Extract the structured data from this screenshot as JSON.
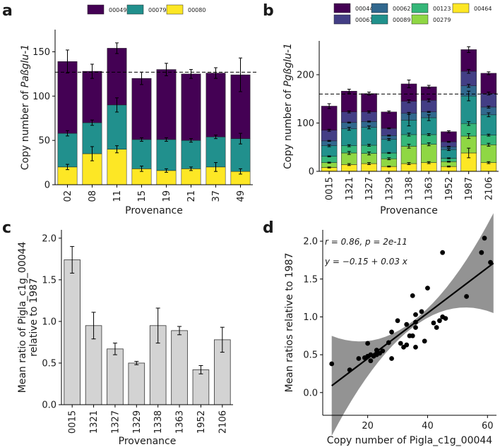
{
  "colors": {
    "00044": "#440154",
    "00049": "#440154",
    "00061": "#433e85",
    "00062": "#31688e",
    "00079": "#21908d",
    "00089": "#21918c",
    "00123": "#35b779",
    "00279": "#8fd744",
    "00080": "#fde725",
    "00464": "#fde725",
    "bar_gray": "#d3d3d3",
    "ribbon": "#808080"
  },
  "panels": {
    "a": {
      "letter": "a"
    },
    "b": {
      "letter": "b"
    },
    "c": {
      "letter": "c"
    },
    "d": {
      "letter": "d"
    }
  },
  "chart_data": [
    {
      "id": "a",
      "type": "bar",
      "stacked": true,
      "xlabel": "Provenance",
      "ylabel_prefix": "Copy number of ",
      "ylabel_italic": "Paßglu-1",
      "categories": [
        "02",
        "08",
        "11",
        "15",
        "19",
        "21",
        "37",
        "49"
      ],
      "ylim": [
        0,
        175
      ],
      "yticks": [
        "0",
        "50",
        "100",
        "150"
      ],
      "reference_line": 127,
      "legend_position": "top",
      "series": [
        {
          "name": "00080",
          "values": [
            20,
            35,
            40,
            18,
            16,
            18,
            20,
            15
          ],
          "errors": [
            3,
            8,
            4,
            3,
            2,
            2,
            5,
            3
          ]
        },
        {
          "name": "00079",
          "values": [
            38,
            35,
            50,
            33,
            35,
            32,
            34,
            37
          ],
          "errors": [
            3,
            3,
            8,
            2,
            2,
            2,
            2,
            6
          ]
        },
        {
          "name": "00049",
          "values": [
            81,
            58,
            64,
            69,
            79,
            75,
            72,
            72
          ],
          "errors": [
            13,
            8,
            6,
            7,
            7,
            5,
            6,
            19
          ]
        }
      ]
    },
    {
      "id": "b",
      "type": "bar",
      "stacked": true,
      "xlabel": "Provenance",
      "ylabel_prefix": "Copy number of ",
      "ylabel_italic": "Pgßglu-1",
      "categories": [
        "0015",
        "1321",
        "1327",
        "1329",
        "1338",
        "1363",
        "1952",
        "1987",
        "2106"
      ],
      "ylim": [
        0,
        270
      ],
      "yticks": [
        "0",
        "100",
        "200"
      ],
      "reference_line": 160,
      "legend_position": "top",
      "series": [
        {
          "name": "00464",
          "values": [
            8,
            14,
            16,
            10,
            16,
            18,
            10,
            38,
            18
          ],
          "errors": [
            1,
            2,
            2,
            1,
            2,
            2,
            1,
            10,
            2
          ]
        },
        {
          "name": "00279",
          "values": [
            10,
            24,
            21,
            16,
            36,
            38,
            10,
            35,
            37
          ],
          "errors": [
            1,
            3,
            3,
            2,
            4,
            3,
            1,
            5,
            3
          ]
        },
        {
          "name": "00123",
          "values": [
            13,
            15,
            17,
            12,
            24,
            20,
            7,
            26,
            20
          ],
          "errors": [
            1,
            2,
            2,
            1,
            3,
            2,
            1,
            4,
            2
          ]
        },
        {
          "name": "00089",
          "values": [
            22,
            35,
            37,
            28,
            30,
            35,
            18,
            57,
            42
          ],
          "errors": [
            2,
            3,
            3,
            2,
            12,
            6,
            2,
            10,
            4
          ]
        },
        {
          "name": "00062",
          "values": [
            10,
            13,
            12,
            8,
            14,
            12,
            6,
            21,
            16
          ],
          "errors": [
            1,
            1,
            1,
            1,
            2,
            1,
            1,
            3,
            2
          ]
        },
        {
          "name": "00061",
          "values": [
            22,
            22,
            20,
            15,
            25,
            24,
            10,
            30,
            28
          ],
          "errors": [
            2,
            2,
            2,
            1,
            3,
            3,
            1,
            4,
            3
          ]
        },
        {
          "name": "00044",
          "values": [
            50,
            43,
            38,
            34,
            36,
            28,
            21,
            45,
            42
          ],
          "errors": [
            5,
            4,
            3,
            2,
            8,
            3,
            2,
            6,
            3
          ]
        }
      ]
    },
    {
      "id": "c",
      "type": "bar",
      "xlabel": "Provenance",
      "ylabel_line1": "Mean ratio of Pigla_c1g_00044",
      "ylabel_line2": "relative to 1987",
      "categories": [
        "0015",
        "1321",
        "1327",
        "1329",
        "1338",
        "1363",
        "1952",
        "2106"
      ],
      "values": [
        1.74,
        0.95,
        0.67,
        0.5,
        0.95,
        0.89,
        0.42,
        0.78
      ],
      "errors": [
        0.16,
        0.16,
        0.07,
        0.02,
        0.21,
        0.05,
        0.05,
        0.15
      ],
      "ylim": [
        0,
        2.1
      ],
      "yticks": [
        "0.0",
        "0.5",
        "1.0",
        "1.5",
        "2.0"
      ]
    },
    {
      "id": "d",
      "type": "scatter",
      "xlabel": "Copy number of Pigla_c1g_00044",
      "ylabel": "Mean ratios relative to 1987",
      "xlim": [
        5,
        63
      ],
      "ylim": [
        -0.3,
        2.15
      ],
      "xticks": [
        "20",
        "40",
        "60"
      ],
      "yticks": [
        "0.0",
        "0.5",
        "1.0",
        "1.5",
        "2.0"
      ],
      "annotation_line1": "r = 0.86, p = 2e-11",
      "annotation_line2": "y = −0.15 + 0.03 x",
      "fit": {
        "intercept": -0.15,
        "slope": 0.03,
        "x_range": [
          8,
          62
        ]
      },
      "points": [
        [
          8,
          0.38
        ],
        [
          14,
          0.3
        ],
        [
          17,
          0.45
        ],
        [
          19,
          0.46
        ],
        [
          20,
          0.65
        ],
        [
          20,
          0.48
        ],
        [
          21,
          0.42
        ],
        [
          21,
          0.5
        ],
        [
          22,
          0.48
        ],
        [
          23,
          0.5
        ],
        [
          23,
          0.56
        ],
        [
          24,
          0.52
        ],
        [
          25,
          0.55
        ],
        [
          27,
          0.66
        ],
        [
          28,
          0.8
        ],
        [
          28,
          0.45
        ],
        [
          30,
          0.95
        ],
        [
          31,
          0.65
        ],
        [
          32,
          0.6
        ],
        [
          33,
          0.9
        ],
        [
          33,
          0.63
        ],
        [
          34,
          0.75
        ],
        [
          35,
          0.75
        ],
        [
          35,
          1.28
        ],
        [
          36,
          0.86
        ],
        [
          36,
          0.6
        ],
        [
          36,
          1.03
        ],
        [
          36,
          0.93
        ],
        [
          38,
          1.07
        ],
        [
          39,
          0.68
        ],
        [
          40,
          1.38
        ],
        [
          42,
          0.92
        ],
        [
          43,
          0.86
        ],
        [
          44,
          0.95
        ],
        [
          45,
          1.85
        ],
        [
          45,
          1.0
        ],
        [
          46,
          0.98
        ],
        [
          53,
          1.27
        ],
        [
          58,
          1.85
        ],
        [
          59,
          2.04
        ],
        [
          61,
          1.72
        ]
      ]
    }
  ]
}
